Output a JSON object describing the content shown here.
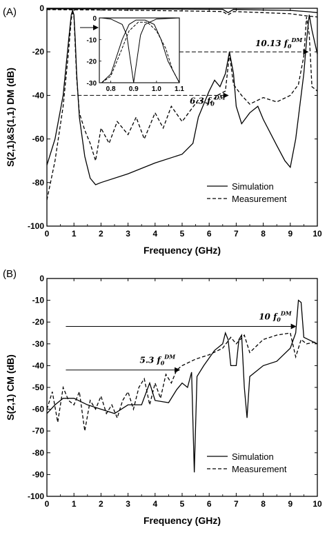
{
  "chart_data": [
    {
      "panel_label": "(A)",
      "type": "line",
      "xlabel": "Frequency (GHz)",
      "ylabel": "S(2,1)&S(1,1) DM (dB)",
      "xlim": [
        0,
        10
      ],
      "ylim": [
        -100,
        0
      ],
      "xticks": [
        "0",
        "1",
        "2",
        "3",
        "4",
        "5",
        "6",
        "7",
        "8",
        "9",
        "10"
      ],
      "yticks": [
        "0",
        "-20",
        "-40",
        "-60",
        "-80",
        "-100"
      ],
      "grid": false,
      "legend_position": "bottom-right",
      "legend": [
        {
          "label": "Simulation",
          "style": "solid"
        },
        {
          "label": "Measurement",
          "style": "dashed"
        }
      ],
      "series": [
        {
          "style": "solid",
          "x": [
            0,
            0.3,
            0.6,
            0.8,
            0.9,
            0.95,
            1.0,
            1.05,
            1.1,
            1.2,
            1.4,
            1.6,
            1.8,
            2.0,
            3.0,
            4.0,
            5.0,
            5.4,
            5.6,
            5.8,
            6.0,
            6.2,
            6.4,
            6.6,
            6.75,
            6.9,
            7.0,
            7.2,
            7.5,
            7.8,
            8.0,
            8.5,
            8.8,
            9.0,
            9.2,
            9.5,
            9.6,
            9.7,
            9.8,
            10.0
          ],
          "y": [
            -72,
            -60,
            -40,
            -15,
            -3,
            -1,
            -3,
            -15,
            -30,
            -50,
            -68,
            -78,
            -81,
            -80,
            -76,
            -71,
            -67,
            -62,
            -50,
            -44,
            -38,
            -33,
            -36,
            -30,
            -20,
            -30,
            -45,
            -53,
            -48,
            -45,
            -51,
            -63,
            -70,
            -73,
            -60,
            -30,
            -15,
            -3,
            -10,
            -21
          ]
        },
        {
          "style": "dashed",
          "x": [
            0,
            0.3,
            0.6,
            0.8,
            0.9,
            0.95,
            1.0,
            1.05,
            1.1,
            1.2,
            1.4,
            1.6,
            1.8,
            2.0,
            2.3,
            2.6,
            3.0,
            3.3,
            3.6,
            4.0,
            4.3,
            4.6,
            5.0,
            5.3,
            5.6,
            6.0,
            6.3,
            6.6,
            6.75,
            6.9,
            7.2,
            7.5,
            8.0,
            8.5,
            9.0,
            9.3,
            9.5,
            9.6,
            9.7,
            9.8,
            10.0
          ],
          "y": [
            -88,
            -70,
            -45,
            -20,
            -5,
            -2,
            -4,
            -18,
            -32,
            -48,
            -56,
            -62,
            -70,
            -55,
            -62,
            -52,
            -58,
            -50,
            -60,
            -48,
            -55,
            -45,
            -52,
            -47,
            -42,
            -44,
            -40,
            -38,
            -21,
            -35,
            -40,
            -44,
            -41,
            -43,
            -40,
            -35,
            -22,
            -4,
            -12,
            -36,
            -38
          ]
        },
        {
          "style": "solid",
          "x": [
            0,
            1.0,
            3.0,
            5.0,
            6.5,
            6.7,
            6.9,
            8.0,
            9.0,
            9.6,
            10.0
          ],
          "y": [
            -0.3,
            -0.3,
            -0.3,
            -0.4,
            -0.5,
            -2,
            -0.5,
            -0.8,
            -1.0,
            -1.5,
            -2.0
          ]
        },
        {
          "style": "dashed",
          "x": [
            0,
            1.0,
            3.0,
            5.0,
            6.5,
            6.7,
            6.9,
            8.0,
            9.0,
            9.6,
            10.0
          ],
          "y": [
            -0.6,
            -0.7,
            -0.9,
            -1.2,
            -1.5,
            -3,
            -1.5,
            -2.0,
            -2.5,
            -3.5,
            -4.0
          ]
        }
      ],
      "annotations": [
        {
          "text": "10.13",
          "sup": "DM",
          "sub": "0",
          "arrow_from_x": 2.6,
          "arrow_to_x": 9.65,
          "y": -20
        },
        {
          "text": "6.3",
          "sup": "DM",
          "sub": "0",
          "arrow_from_x": 0.9,
          "arrow_to_x": 6.7,
          "y": -40
        }
      ],
      "inset": {
        "xlim": [
          0.75,
          1.1
        ],
        "ylim": [
          -30,
          0
        ],
        "xticks": [
          "0.8",
          "0.9",
          "1.0",
          "1.1"
        ],
        "yticks": [
          "0",
          "-10",
          "-20",
          "-30"
        ],
        "series": [
          {
            "style": "solid",
            "x": [
              0.76,
              0.8,
              0.85,
              0.87,
              0.9,
              0.93,
              0.95,
              1.0,
              1.1
            ],
            "y": [
              0,
              -0.5,
              -3,
              -8,
              -30,
              -8,
              -3,
              -0.5,
              0
            ]
          },
          {
            "style": "solid",
            "x": [
              0.76,
              0.8,
              0.85,
              0.88,
              0.91,
              0.95,
              0.99,
              1.02,
              1.05,
              1.1
            ],
            "y": [
              -30,
              -26,
              -10,
              -3,
              -1,
              -1,
              -3,
              -10,
              -20,
              -30
            ]
          },
          {
            "style": "dashed",
            "x": [
              0.76,
              0.8,
              0.85,
              0.88,
              0.92,
              0.96,
              1.0,
              1.04,
              1.07,
              1.1
            ],
            "y": [
              -30,
              -27,
              -14,
              -6,
              -2,
              -2,
              -6,
              -14,
              -24,
              -30
            ]
          }
        ]
      }
    },
    {
      "panel_label": "(B)",
      "type": "line",
      "xlabel": "Frequency (GHz)",
      "ylabel": "S(2,1) CM (dB)",
      "xlim": [
        0,
        10
      ],
      "ylim": [
        -100,
        0
      ],
      "xticks": [
        "0",
        "1",
        "2",
        "3",
        "4",
        "5",
        "6",
        "7",
        "8",
        "9",
        "10"
      ],
      "yticks": [
        "0",
        "-10",
        "-20",
        "-30",
        "-40",
        "-50",
        "-60",
        "-70",
        "-80",
        "-90",
        "-100"
      ],
      "grid": false,
      "legend_position": "bottom-right",
      "legend": [
        {
          "label": "Simulation",
          "style": "solid"
        },
        {
          "label": "Measurement",
          "style": "dashed"
        }
      ],
      "series": [
        {
          "style": "solid",
          "x": [
            0,
            0.3,
            0.6,
            1.0,
            1.5,
            2.0,
            2.5,
            3.0,
            3.5,
            3.8,
            4.0,
            4.5,
            4.8,
            5.0,
            5.2,
            5.35,
            5.45,
            5.55,
            5.8,
            6.2,
            6.5,
            6.6,
            6.7,
            6.8,
            7.0,
            7.1,
            7.2,
            7.3,
            7.4,
            7.5,
            8.0,
            8.5,
            9.0,
            9.2,
            9.3,
            9.4,
            9.5,
            10.0
          ],
          "y": [
            -62,
            -58,
            -55,
            -55,
            -58,
            -60,
            -62,
            -58,
            -58,
            -48,
            -56,
            -57,
            -51,
            -48,
            -50,
            -43,
            -89,
            -45,
            -40,
            -33,
            -30,
            -25,
            -28,
            -40,
            -40,
            -28,
            -26,
            -50,
            -64,
            -45,
            -40,
            -38,
            -32,
            -25,
            -10,
            -11,
            -27,
            -30
          ]
        },
        {
          "style": "dashed",
          "x": [
            0,
            0.2,
            0.4,
            0.6,
            0.8,
            1.0,
            1.2,
            1.4,
            1.6,
            1.8,
            2.0,
            2.2,
            2.4,
            2.6,
            2.8,
            3.0,
            3.2,
            3.4,
            3.6,
            3.8,
            4.0,
            4.2,
            4.4,
            4.6,
            4.8,
            5.0,
            5.5,
            6.0,
            6.5,
            6.8,
            7.0,
            7.3,
            7.5,
            8.0,
            8.5,
            9.0,
            9.2,
            9.4,
            9.6,
            10.0
          ],
          "y": [
            -60,
            -52,
            -66,
            -50,
            -56,
            -58,
            -52,
            -70,
            -56,
            -60,
            -54,
            -62,
            -58,
            -64,
            -56,
            -52,
            -60,
            -50,
            -46,
            -58,
            -48,
            -55,
            -44,
            -48,
            -42,
            -40,
            -37,
            -35,
            -32,
            -27,
            -30,
            -26,
            -34,
            -28,
            -26,
            -25,
            -36,
            -28,
            -30,
            -29
          ]
        }
      ],
      "annotations": [
        {
          "text": "10",
          "sup": "DM",
          "sub": "0",
          "arrow_from_x": 0.7,
          "arrow_to_x": 9.2,
          "y": -22
        },
        {
          "text": "5.3",
          "sup": "DM",
          "sub": "0",
          "arrow_from_x": 0.7,
          "arrow_to_x": 4.9,
          "y": -42
        }
      ]
    }
  ]
}
